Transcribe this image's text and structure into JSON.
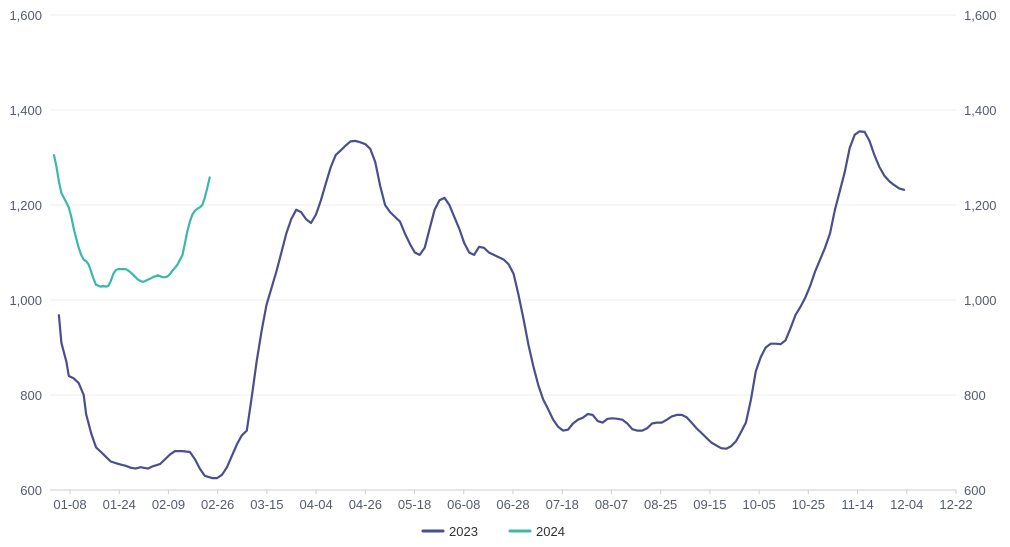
{
  "chart_data": {
    "type": "line",
    "title": "",
    "xlabel": "",
    "ylabel": "",
    "ylim": [
      600,
      1600
    ],
    "y_ticks": [
      600,
      800,
      1000,
      1200,
      1400,
      1600
    ],
    "y_tick_labels": [
      "600",
      "800",
      "1,000",
      "1,200",
      "1,400",
      "1,600"
    ],
    "y_axis_right_mirror": true,
    "x_tick_labels": [
      "01-08",
      "01-24",
      "02-09",
      "02-26",
      "03-15",
      "04-04",
      "04-26",
      "05-18",
      "06-08",
      "06-28",
      "07-18",
      "08-07",
      "08-25",
      "09-15",
      "10-05",
      "10-25",
      "11-14",
      "12-04",
      "12-22"
    ],
    "x_range_days": [
      0,
      365
    ],
    "grid": "horizontal",
    "legend_position": "bottom-center",
    "series": [
      {
        "name": "2023",
        "color": "#4a4e8c",
        "points": [
          [
            2,
            968
          ],
          [
            3,
            910
          ],
          [
            5,
            870
          ],
          [
            6,
            840
          ],
          [
            8,
            835
          ],
          [
            10,
            825
          ],
          [
            12,
            800
          ],
          [
            13,
            760
          ],
          [
            15,
            720
          ],
          [
            17,
            690
          ],
          [
            19,
            680
          ],
          [
            21,
            670
          ],
          [
            23,
            660
          ],
          [
            26,
            655
          ],
          [
            29,
            651
          ],
          [
            31,
            647
          ],
          [
            33,
            645
          ],
          [
            35,
            648
          ],
          [
            38,
            645
          ],
          [
            40,
            650
          ],
          [
            43,
            655
          ],
          [
            45,
            665
          ],
          [
            47,
            675
          ],
          [
            49,
            682
          ],
          [
            52,
            682
          ],
          [
            55,
            680
          ],
          [
            57,
            665
          ],
          [
            59,
            645
          ],
          [
            61,
            630
          ],
          [
            64,
            625
          ],
          [
            66,
            625
          ],
          [
            68,
            632
          ],
          [
            70,
            648
          ],
          [
            72,
            672
          ],
          [
            74,
            696
          ],
          [
            76,
            715
          ],
          [
            78,
            725
          ],
          [
            80,
            795
          ],
          [
            82,
            870
          ],
          [
            84,
            935
          ],
          [
            86,
            990
          ],
          [
            88,
            1025
          ],
          [
            90,
            1060
          ],
          [
            92,
            1100
          ],
          [
            94,
            1140
          ],
          [
            96,
            1170
          ],
          [
            98,
            1190
          ],
          [
            100,
            1185
          ],
          [
            102,
            1170
          ],
          [
            104,
            1162
          ],
          [
            106,
            1180
          ],
          [
            108,
            1210
          ],
          [
            110,
            1245
          ],
          [
            112,
            1280
          ],
          [
            114,
            1305
          ],
          [
            116,
            1315
          ],
          [
            118,
            1325
          ],
          [
            120,
            1334
          ],
          [
            122,
            1335
          ],
          [
            124,
            1332
          ],
          [
            126,
            1328
          ],
          [
            128,
            1318
          ],
          [
            130,
            1290
          ],
          [
            132,
            1240
          ],
          [
            134,
            1200
          ],
          [
            136,
            1185
          ],
          [
            138,
            1175
          ],
          [
            140,
            1165
          ],
          [
            142,
            1140
          ],
          [
            144,
            1118
          ],
          [
            146,
            1100
          ],
          [
            148,
            1095
          ],
          [
            150,
            1110
          ],
          [
            152,
            1150
          ],
          [
            154,
            1190
          ],
          [
            156,
            1210
          ],
          [
            158,
            1215
          ],
          [
            160,
            1200
          ],
          [
            162,
            1175
          ],
          [
            164,
            1150
          ],
          [
            166,
            1120
          ],
          [
            168,
            1100
          ],
          [
            170,
            1095
          ],
          [
            172,
            1112
          ],
          [
            174,
            1110
          ],
          [
            176,
            1100
          ],
          [
            178,
            1095
          ],
          [
            180,
            1090
          ],
          [
            182,
            1085
          ],
          [
            184,
            1075
          ],
          [
            186,
            1055
          ],
          [
            188,
            1010
          ],
          [
            190,
            960
          ],
          [
            192,
            905
          ],
          [
            194,
            860
          ],
          [
            196,
            820
          ],
          [
            198,
            790
          ],
          [
            200,
            770
          ],
          [
            202,
            748
          ],
          [
            204,
            733
          ],
          [
            206,
            725
          ],
          [
            208,
            727
          ],
          [
            210,
            740
          ],
          [
            212,
            748
          ],
          [
            214,
            752
          ],
          [
            216,
            760
          ],
          [
            218,
            758
          ],
          [
            220,
            745
          ],
          [
            222,
            742
          ],
          [
            224,
            750
          ],
          [
            226,
            751
          ],
          [
            228,
            750
          ],
          [
            230,
            748
          ],
          [
            232,
            740
          ],
          [
            234,
            728
          ],
          [
            236,
            725
          ],
          [
            238,
            725
          ],
          [
            240,
            730
          ],
          [
            242,
            740
          ],
          [
            244,
            742
          ],
          [
            246,
            742
          ],
          [
            248,
            748
          ],
          [
            250,
            755
          ],
          [
            252,
            758
          ],
          [
            254,
            758
          ],
          [
            256,
            753
          ],
          [
            258,
            742
          ],
          [
            260,
            730
          ],
          [
            262,
            720
          ],
          [
            264,
            710
          ],
          [
            266,
            700
          ],
          [
            268,
            694
          ],
          [
            270,
            688
          ],
          [
            272,
            687
          ],
          [
            274,
            692
          ],
          [
            276,
            703
          ],
          [
            278,
            722
          ],
          [
            280,
            742
          ],
          [
            282,
            790
          ],
          [
            284,
            850
          ],
          [
            286,
            880
          ],
          [
            288,
            900
          ],
          [
            290,
            908
          ],
          [
            292,
            908
          ],
          [
            294,
            907
          ],
          [
            296,
            915
          ],
          [
            298,
            940
          ],
          [
            300,
            968
          ],
          [
            302,
            985
          ],
          [
            304,
            1005
          ],
          [
            306,
            1030
          ],
          [
            308,
            1060
          ],
          [
            310,
            1085
          ],
          [
            312,
            1110
          ],
          [
            314,
            1140
          ],
          [
            316,
            1190
          ],
          [
            318,
            1230
          ],
          [
            320,
            1270
          ],
          [
            322,
            1320
          ],
          [
            324,
            1348
          ],
          [
            326,
            1355
          ],
          [
            328,
            1354
          ],
          [
            330,
            1335
          ],
          [
            332,
            1305
          ],
          [
            334,
            1280
          ],
          [
            336,
            1262
          ],
          [
            338,
            1250
          ],
          [
            340,
            1242
          ],
          [
            342,
            1235
          ],
          [
            344,
            1232
          ]
        ]
      },
      {
        "name": "2024",
        "color": "#3cb8a8",
        "points": [
          [
            0,
            1305
          ],
          [
            1,
            1280
          ],
          [
            2,
            1250
          ],
          [
            3,
            1225
          ],
          [
            4,
            1215
          ],
          [
            5,
            1205
          ],
          [
            6,
            1195
          ],
          [
            7,
            1175
          ],
          [
            8,
            1150
          ],
          [
            9,
            1130
          ],
          [
            10,
            1110
          ],
          [
            11,
            1095
          ],
          [
            12,
            1085
          ],
          [
            13,
            1082
          ],
          [
            14,
            1075
          ],
          [
            15,
            1060
          ],
          [
            16,
            1045
          ],
          [
            17,
            1032
          ],
          [
            18,
            1030
          ],
          [
            19,
            1028
          ],
          [
            20,
            1030
          ],
          [
            21,
            1028
          ],
          [
            22,
            1030
          ],
          [
            23,
            1040
          ],
          [
            24,
            1055
          ],
          [
            25,
            1063
          ],
          [
            26,
            1065
          ],
          [
            27,
            1065
          ],
          [
            28,
            1065
          ],
          [
            29,
            1065
          ],
          [
            30,
            1062
          ],
          [
            31,
            1058
          ],
          [
            32,
            1053
          ],
          [
            33,
            1048
          ],
          [
            34,
            1043
          ],
          [
            35,
            1040
          ],
          [
            36,
            1038
          ],
          [
            37,
            1040
          ],
          [
            38,
            1043
          ],
          [
            39,
            1045
          ],
          [
            40,
            1048
          ],
          [
            41,
            1050
          ],
          [
            42,
            1052
          ],
          [
            43,
            1050
          ],
          [
            44,
            1048
          ],
          [
            45,
            1048
          ],
          [
            46,
            1050
          ],
          [
            47,
            1055
          ],
          [
            48,
            1062
          ],
          [
            49,
            1068
          ],
          [
            50,
            1075
          ],
          [
            51,
            1085
          ],
          [
            52,
            1095
          ],
          [
            53,
            1120
          ],
          [
            54,
            1145
          ],
          [
            55,
            1165
          ],
          [
            56,
            1180
          ],
          [
            57,
            1188
          ],
          [
            58,
            1192
          ],
          [
            59,
            1195
          ],
          [
            60,
            1200
          ],
          [
            61,
            1215
          ],
          [
            62,
            1235
          ],
          [
            63,
            1258
          ]
        ]
      }
    ]
  }
}
